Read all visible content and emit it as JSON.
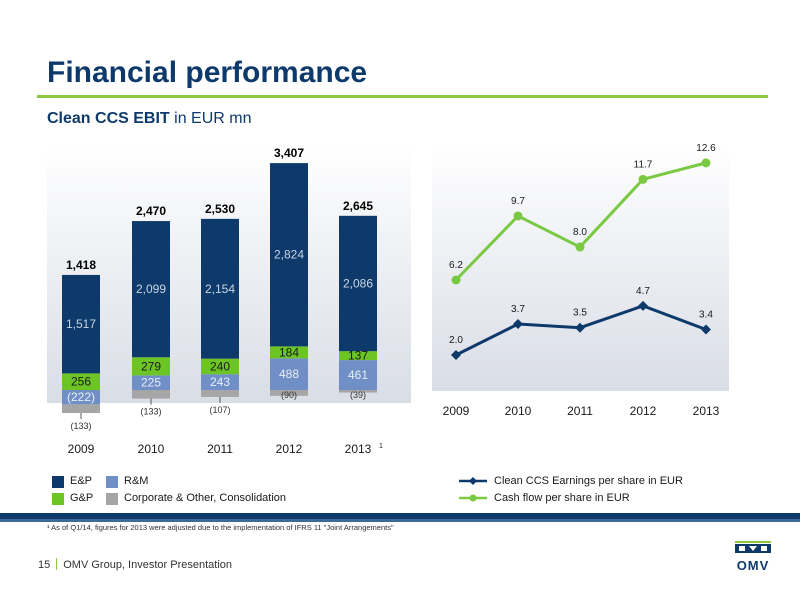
{
  "slide": {
    "title": "Financial performance",
    "subtitle_bold": "Clean CCS EBIT",
    "subtitle_rest": " in EUR mn",
    "footnote": "¹ As of Q1/14, figures for 2013 were adjusted due to the implementation of IFRS 11 \"Joint Arrangements\"",
    "page_number": "15",
    "footer_text": "OMV Group, Investor Presentation",
    "logo_text": "OMV"
  },
  "colors": {
    "ep": "#0e3a6b",
    "rm": "#6f8fc6",
    "gp": "#6cc524",
    "corp": "#a6a6a6",
    "line_eps": "#0e3a6b",
    "line_cf": "#7ac943",
    "accent": "#8dc63f"
  },
  "chart_data": [
    {
      "type": "bar",
      "stacked": true,
      "categories": [
        "2009",
        "2010",
        "2011",
        "2012",
        "2013"
      ],
      "category_superscripts": [
        "",
        "",
        "",
        "",
        "1"
      ],
      "totals": [
        "1,418",
        "2,470",
        "2,530",
        "3,407",
        "2,645"
      ],
      "series": [
        {
          "name": "E&P",
          "values": [
            1517,
            2099,
            2154,
            2824,
            2086
          ],
          "labels": [
            "1,517",
            "2,099",
            "2,154",
            "2,824",
            "2,086"
          ],
          "color": "#0e3a6b"
        },
        {
          "name": "R&M",
          "values": [
            -222,
            225,
            243,
            488,
            461
          ],
          "labels": [
            "(222)",
            "225",
            "243",
            "488",
            "461"
          ],
          "color": "#6f8fc6"
        },
        {
          "name": "G&P",
          "values": [
            256,
            279,
            240,
            184,
            137
          ],
          "labels": [
            "256",
            "279",
            "240",
            "184",
            "137"
          ],
          "color": "#6cc524"
        },
        {
          "name": "Corporate & Other, Consolidation",
          "values": [
            -133,
            -133,
            -107,
            -90,
            -39
          ],
          "labels": [
            "(133)",
            "(133)",
            "(107)",
            "(90)",
            "(39)"
          ],
          "color": "#a6a6a6"
        }
      ]
    },
    {
      "type": "line",
      "x": [
        "2009",
        "2010",
        "2011",
        "2012",
        "2013"
      ],
      "series": [
        {
          "name": "Clean CCS Earnings per share in EUR",
          "values": [
            2.0,
            3.7,
            3.5,
            4.7,
            3.4
          ],
          "labels": [
            "2.0",
            "3.7",
            "3.5",
            "4.7",
            "3.4"
          ],
          "color": "#0e3a6b",
          "marker": "diamond"
        },
        {
          "name": "Cash flow per share in EUR",
          "values": [
            6.2,
            9.7,
            8.0,
            11.7,
            12.6
          ],
          "labels": [
            "6.2",
            "9.7",
            "8.0",
            "11.7",
            "12.6"
          ],
          "color": "#7ac943",
          "marker": "circle"
        }
      ]
    }
  ]
}
